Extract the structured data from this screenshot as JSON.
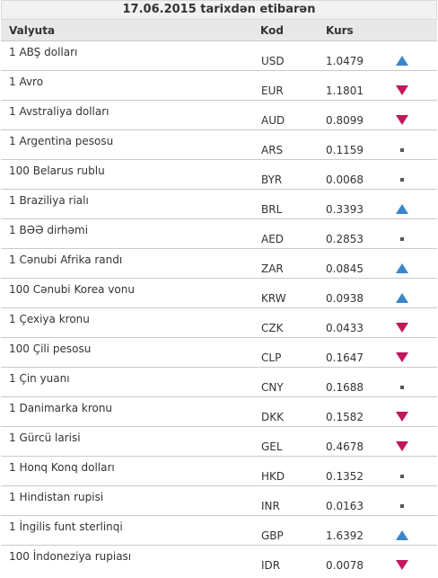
{
  "title": "17.06.2015 tarixdən etibarən",
  "columns": {
    "name": "Valyuta",
    "code": "Kod",
    "rate": "Kurs"
  },
  "colors": {
    "up": "#3a86c8",
    "down": "#c2185b",
    "same": "#555555"
  },
  "rows": [
    {
      "name": "1 ABŞ dolları",
      "code": "USD",
      "rate": "1.0479",
      "trend": "up"
    },
    {
      "name": "1 Avro",
      "code": "EUR",
      "rate": "1.1801",
      "trend": "down"
    },
    {
      "name": "1 Avstraliya dolları",
      "code": "AUD",
      "rate": "0.8099",
      "trend": "down"
    },
    {
      "name": "1 Argentina pesosu",
      "code": "ARS",
      "rate": "0.1159",
      "trend": "same"
    },
    {
      "name": "100 Belarus rublu",
      "code": "BYR",
      "rate": "0.0068",
      "trend": "same"
    },
    {
      "name": "1 Braziliya rialı",
      "code": "BRL",
      "rate": "0.3393",
      "trend": "up"
    },
    {
      "name": "1 BƏƏ dirhəmi",
      "code": "AED",
      "rate": "0.2853",
      "trend": "same"
    },
    {
      "name": "1 Cənubi Afrika randı",
      "code": "ZAR",
      "rate": "0.0845",
      "trend": "up"
    },
    {
      "name": "100 Cənubi Korea vonu",
      "code": "KRW",
      "rate": "0.0938",
      "trend": "up"
    },
    {
      "name": "1 Çexiya kronu",
      "code": "CZK",
      "rate": "0.0433",
      "trend": "down"
    },
    {
      "name": "100 Çili pesosu",
      "code": "CLP",
      "rate": "0.1647",
      "trend": "down"
    },
    {
      "name": "1 Çin yuanı",
      "code": "CNY",
      "rate": "0.1688",
      "trend": "same"
    },
    {
      "name": "1 Danimarka kronu",
      "code": "DKK",
      "rate": "0.1582",
      "trend": "down"
    },
    {
      "name": "1 Gürcü larisi",
      "code": "GEL",
      "rate": "0.4678",
      "trend": "down"
    },
    {
      "name": "1 Honq Konq dolları",
      "code": "HKD",
      "rate": "0.1352",
      "trend": "same"
    },
    {
      "name": "1 Hindistan rupisi",
      "code": "INR",
      "rate": "0.0163",
      "trend": "same"
    },
    {
      "name": "1 İngilis funt sterlinqi",
      "code": "GBP",
      "rate": "1.6392",
      "trend": "up"
    },
    {
      "name": "100 İndoneziya rupiası",
      "code": "IDR",
      "rate": "0.0078",
      "trend": "down"
    }
  ]
}
